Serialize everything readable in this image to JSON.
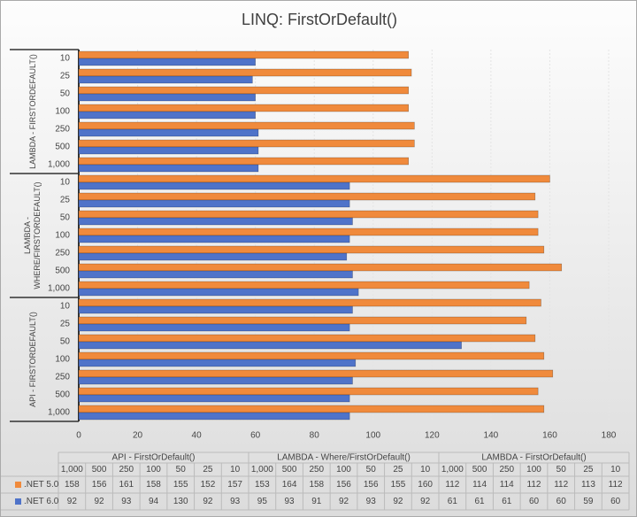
{
  "chart_data": {
    "type": "bar",
    "orientation": "horizontal",
    "title": "LINQ: FirstOrDefault()",
    "groups": [
      "API - FirstOrDefault()",
      "LAMBDA - Where/FirstOrDefault()",
      "LAMBDA - FirstOrDefault()"
    ],
    "categories": [
      [
        "1,000",
        "500",
        "250",
        "100",
        "50",
        "25",
        "10"
      ],
      [
        "1,000",
        "500",
        "250",
        "100",
        "50",
        "25",
        "10"
      ],
      [
        "1,000",
        "500",
        "250",
        "100",
        "50",
        "25",
        "10"
      ]
    ],
    "series": [
      {
        "name": ".NET 5.0",
        "color": "#f08a3c",
        "values": [
          [
            158,
            156,
            161,
            158,
            155,
            152,
            157
          ],
          [
            153,
            164,
            158,
            156,
            156,
            155,
            160
          ],
          [
            112,
            114,
            114,
            112,
            112,
            113,
            112
          ]
        ]
      },
      {
        "name": ".NET 6.0",
        "color": "#4f73c9",
        "values": [
          [
            92,
            92,
            93,
            94,
            130,
            92,
            93
          ],
          [
            95,
            93,
            91,
            92,
            93,
            92,
            92
          ],
          [
            61,
            61,
            61,
            60,
            60,
            59,
            60
          ]
        ]
      }
    ],
    "xlim": [
      0,
      180
    ],
    "xticks": [
      0,
      20,
      40,
      60,
      80,
      100,
      120,
      140,
      160,
      180
    ],
    "grid": true
  }
}
